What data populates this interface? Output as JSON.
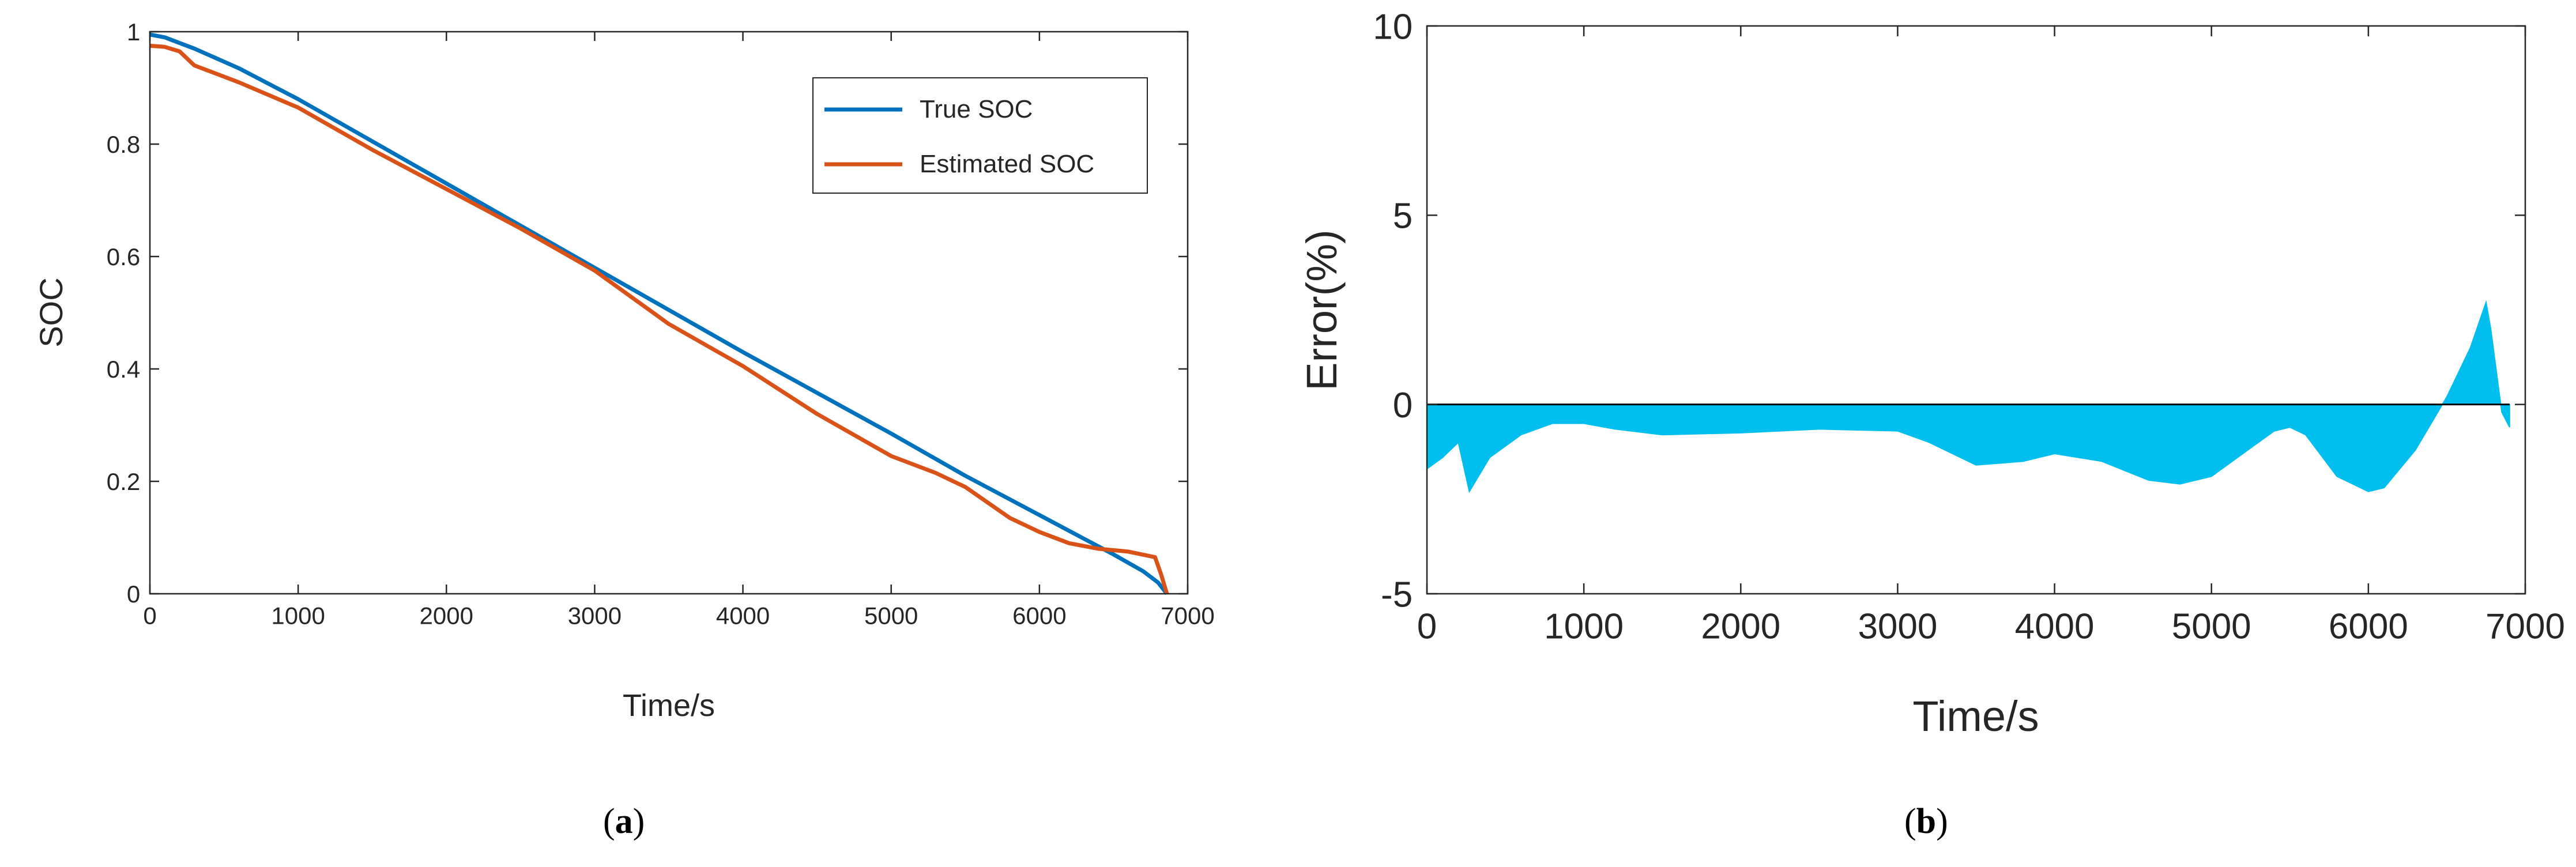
{
  "colors": {
    "true_soc": "#0072BD",
    "estimated_soc": "#D95319",
    "error_fill": "#00BFEF",
    "axis": "#262626"
  },
  "captions": {
    "a_open": "(",
    "a": "a",
    "a_close": ")",
    "b_open": "(",
    "b": "b",
    "b_close": ")"
  },
  "chart_data": [
    {
      "id": "a",
      "type": "line",
      "title": "",
      "xlabel": "Time/s",
      "ylabel": "SOC",
      "xlim": [
        0,
        7000
      ],
      "ylim": [
        0,
        1
      ],
      "xticks": [
        0,
        1000,
        2000,
        3000,
        4000,
        5000,
        6000,
        7000
      ],
      "yticks": [
        0,
        0.2,
        0.4,
        0.6,
        0.8,
        1
      ],
      "ytick_labels": [
        "0",
        "0.2",
        "0.4",
        "0.6",
        "0.8",
        "1"
      ],
      "legend": {
        "position": "top-right",
        "entries": [
          "True SOC",
          "Estimated SOC"
        ]
      },
      "series": [
        {
          "name": "True SOC",
          "color": "#0072BD",
          "x": [
            0,
            100,
            300,
            600,
            1000,
            2000,
            3000,
            4000,
            5000,
            5500,
            6000,
            6500,
            6700,
            6800,
            6860
          ],
          "y": [
            0.995,
            0.99,
            0.97,
            0.935,
            0.88,
            0.73,
            0.58,
            0.43,
            0.285,
            0.21,
            0.14,
            0.07,
            0.04,
            0.02,
            0.0
          ]
        },
        {
          "name": "Estimated SOC",
          "color": "#D95319",
          "x": [
            0,
            100,
            200,
            260,
            300,
            600,
            1000,
            1500,
            2000,
            2500,
            3000,
            3500,
            4000,
            4500,
            5000,
            5300,
            5500,
            5800,
            6000,
            6200,
            6400,
            6600,
            6780,
            6820,
            6860
          ],
          "y": [
            0.975,
            0.973,
            0.965,
            0.95,
            0.94,
            0.91,
            0.865,
            0.79,
            0.72,
            0.65,
            0.575,
            0.48,
            0.405,
            0.32,
            0.245,
            0.215,
            0.19,
            0.135,
            0.11,
            0.09,
            0.08,
            0.075,
            0.065,
            0.035,
            0.0
          ]
        }
      ]
    },
    {
      "id": "b",
      "type": "area",
      "title": "",
      "xlabel": "Time/s",
      "ylabel": "Error(%)",
      "xlim": [
        0,
        7000
      ],
      "ylim": [
        -5,
        10
      ],
      "xticks": [
        0,
        1000,
        2000,
        3000,
        4000,
        5000,
        6000,
        7000
      ],
      "yticks": [
        -5,
        0,
        5,
        10
      ],
      "ytick_labels": [
        "-5",
        "0",
        "5",
        "10"
      ],
      "baseline": 0,
      "series": [
        {
          "name": "Error",
          "color": "#00BFEF",
          "x": [
            0,
            100,
            200,
            270,
            400,
            600,
            800,
            1000,
            1200,
            1500,
            2000,
            2500,
            3000,
            3200,
            3500,
            3800,
            4000,
            4300,
            4600,
            4800,
            5000,
            5200,
            5400,
            5500,
            5600,
            5800,
            6000,
            6100,
            6300,
            6500,
            6650,
            6750,
            6780,
            6850,
            6900
          ],
          "y": [
            -1.7,
            -1.4,
            -1.0,
            -2.3,
            -1.4,
            -0.8,
            -0.5,
            -0.5,
            -0.65,
            -0.8,
            -0.75,
            -0.65,
            -0.7,
            -1.0,
            -1.6,
            -1.5,
            -1.3,
            -1.5,
            -2.0,
            -2.1,
            -1.9,
            -1.3,
            -0.7,
            -0.6,
            -0.8,
            -1.9,
            -2.3,
            -2.2,
            -1.2,
            0.2,
            1.5,
            2.7,
            2.0,
            -0.2,
            -0.6
          ]
        }
      ]
    }
  ]
}
